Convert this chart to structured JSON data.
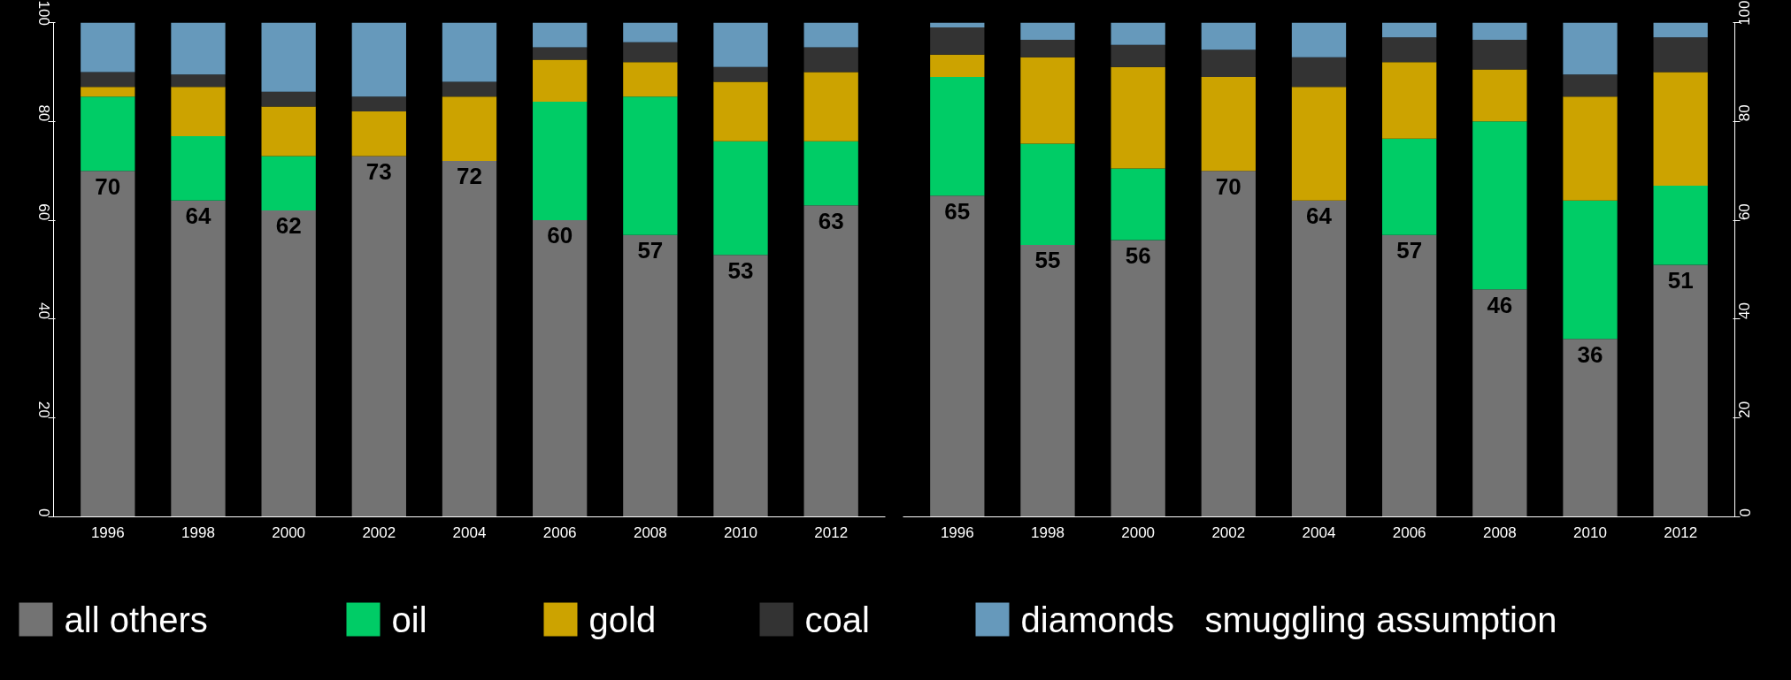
{
  "chart_data": [
    {
      "type": "bar",
      "stacked": true,
      "categories": [
        "1996",
        "1998",
        "2000",
        "2002",
        "2004",
        "2006",
        "2008",
        "2010",
        "2012"
      ],
      "ylim": [
        0,
        100
      ],
      "yticks": [
        0,
        20,
        40,
        60,
        80,
        100
      ],
      "grid": false,
      "legend": "bottom",
      "legend_title": "smuggling assumption",
      "series": [
        {
          "name": "all others",
          "color": "#737373",
          "values": [
            70,
            64,
            62,
            73,
            72,
            60,
            57,
            53,
            63
          ],
          "value_labels": [
            "70",
            "64",
            "62",
            "73",
            "72",
            "60",
            "57",
            "53",
            "63"
          ]
        },
        {
          "name": "oil",
          "color": "#00cc66",
          "values": [
            15,
            13,
            11,
            0,
            0,
            24,
            28,
            23,
            13
          ]
        },
        {
          "name": "gold",
          "color": "#cca300",
          "values": [
            2,
            10,
            10,
            9,
            13,
            8.5,
            7,
            12,
            14
          ]
        },
        {
          "name": "coal",
          "color": "#333333",
          "values": [
            3,
            2.5,
            3,
            3,
            3,
            2.5,
            4,
            3,
            5
          ]
        },
        {
          "name": "diamonds",
          "color": "#6699bb",
          "values": [
            10,
            10.5,
            14,
            15,
            12,
            5,
            4,
            9,
            5
          ]
        }
      ]
    },
    {
      "type": "bar",
      "stacked": true,
      "categories": [
        "1996",
        "1998",
        "2000",
        "2002",
        "2004",
        "2006",
        "2008",
        "2010",
        "2012"
      ],
      "y2lim": [
        0,
        100
      ],
      "y2ticks": [
        0,
        20,
        40,
        60,
        80,
        100
      ],
      "grid": false,
      "series": [
        {
          "axis": "y2",
          "color": "#737373",
          "values": [
            65,
            55,
            56,
            70,
            64,
            57,
            46,
            36,
            51
          ],
          "value_labels": [
            "65",
            "55",
            "56",
            "70",
            "64",
            "57",
            "46",
            "36",
            "51"
          ]
        },
        {
          "axis": "y2",
          "color": "#00cc66",
          "values": [
            24,
            20.5,
            14.5,
            0,
            0,
            19.5,
            34,
            28,
            16
          ]
        },
        {
          "axis": "y2",
          "color": "#cca300",
          "values": [
            4.5,
            17.5,
            20.5,
            19,
            23,
            15.5,
            10.5,
            21,
            23
          ]
        },
        {
          "axis": "y2",
          "color": "#333333",
          "values": [
            5.5,
            3.5,
            4.5,
            5.5,
            6,
            5,
            6,
            4.5,
            7
          ]
        },
        {
          "axis": "y2",
          "color": "#6699bb",
          "values": [
            1,
            3.5,
            4.5,
            5.5,
            7,
            3,
            3.5,
            10.5,
            3
          ]
        }
      ]
    }
  ]
}
